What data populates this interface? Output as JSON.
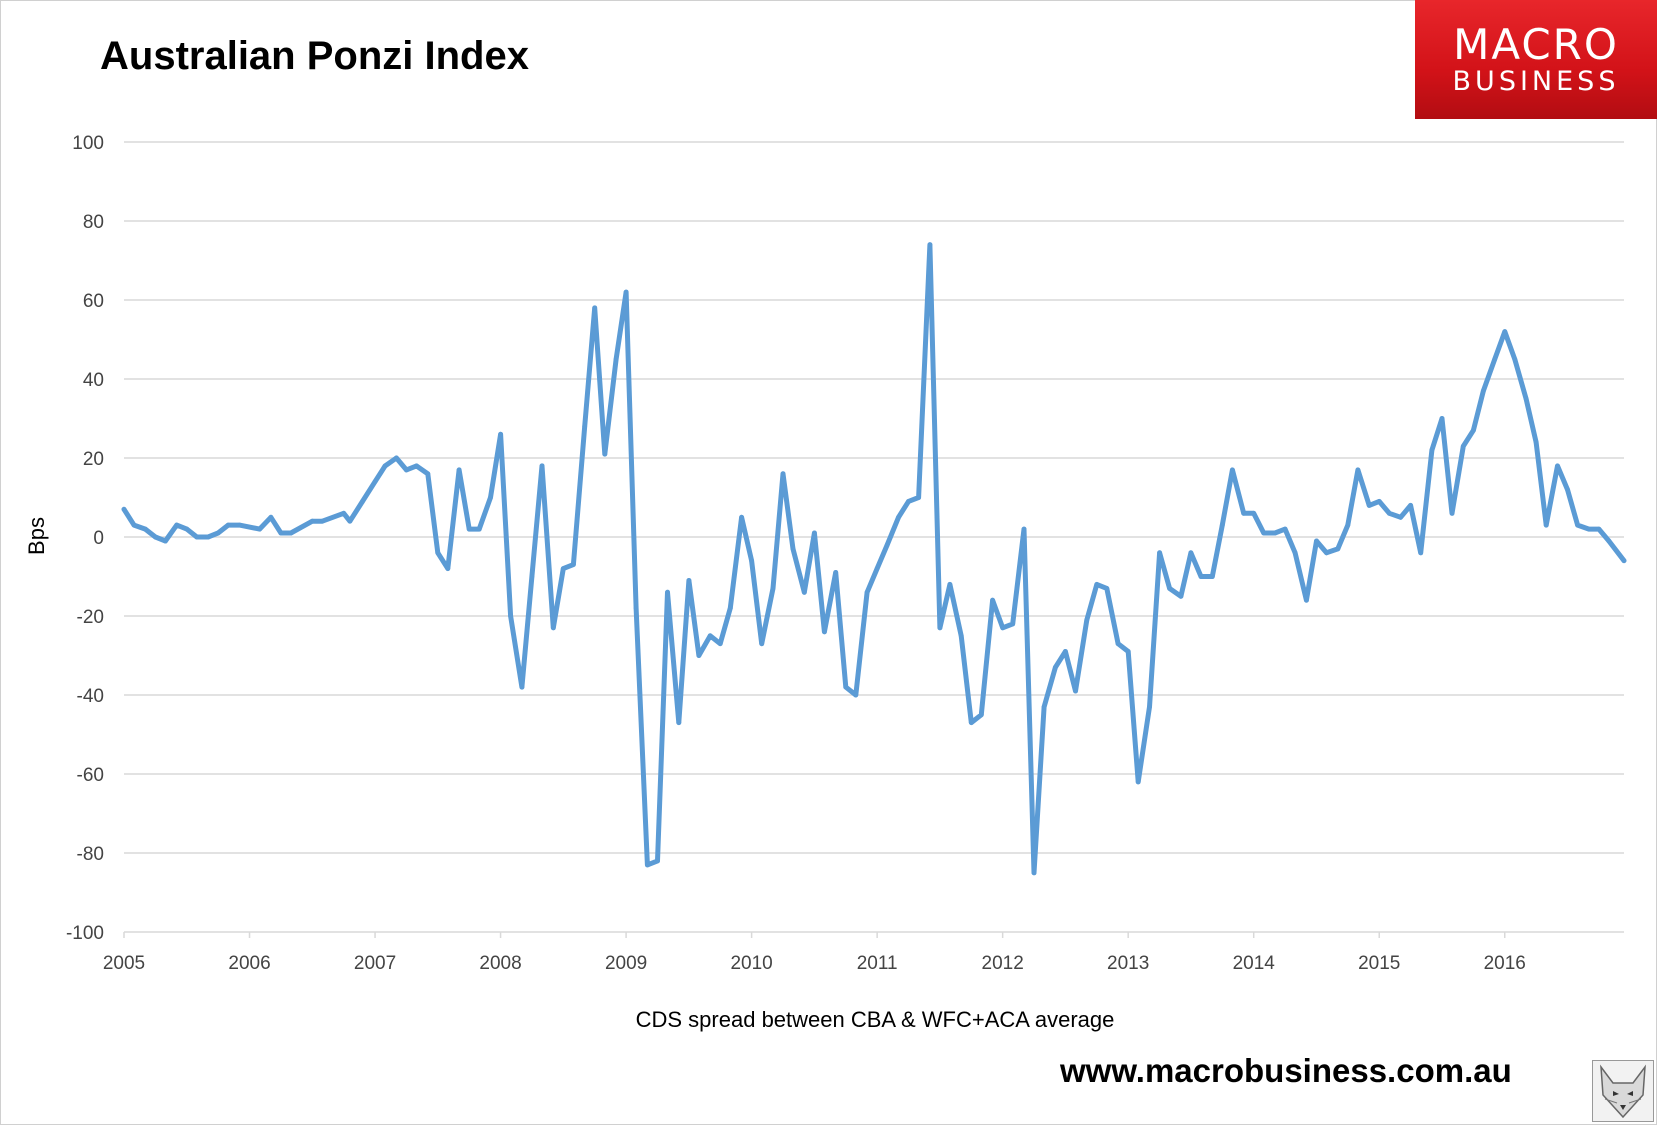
{
  "header": {
    "title": "Australian Ponzi Index",
    "logo_line1": "MACRO",
    "logo_line2": "BUSINESS"
  },
  "footer": {
    "website": "www.macrobusiness.com.au"
  },
  "colors": {
    "series": "#5b9bd5",
    "gridline": "#d9d9d9",
    "logo_red": "#d21218"
  },
  "chart_data": {
    "type": "line",
    "title": "Australian Ponzi Index",
    "ylabel": "Bps",
    "xlabel": "CDS spread between CBA & WFC+ACA average",
    "xlim": [
      2005,
      2016.95
    ],
    "ylim": [
      -100,
      100
    ],
    "y_ticks": [
      "100",
      "80",
      "60",
      "40",
      "20",
      "0",
      "-20",
      "-40",
      "-60",
      "-80",
      "-100"
    ],
    "x_ticks": [
      "2005",
      "2006",
      "2007",
      "2008",
      "2009",
      "2010",
      "2011",
      "2012",
      "2013",
      "2014",
      "2015",
      "2016"
    ],
    "grid": true,
    "legend": "none",
    "series": [
      {
        "x": [
          2005.0,
          2005.08,
          2005.17,
          2005.25,
          2005.33,
          2005.42,
          2005.5,
          2005.58,
          2005.67,
          2005.75,
          2005.83,
          2005.92,
          2006.08,
          2006.17,
          2006.25,
          2006.33,
          2006.5,
          2006.58,
          2006.75,
          2006.8,
          2006.9,
          2007.0,
          2007.08,
          2007.17,
          2007.25,
          2007.33,
          2007.42,
          2007.5,
          2007.58,
          2007.67,
          2007.75,
          2007.83,
          2007.92,
          2008.0,
          2008.08,
          2008.17,
          2008.25,
          2008.33,
          2008.42,
          2008.5,
          2008.58,
          2008.67,
          2008.75,
          2008.83,
          2008.92,
          2009.0,
          2009.08,
          2009.17,
          2009.25,
          2009.33,
          2009.42,
          2009.5,
          2009.58,
          2009.67,
          2009.75,
          2009.83,
          2009.92,
          2010.0,
          2010.08,
          2010.17,
          2010.25,
          2010.33,
          2010.42,
          2010.5,
          2010.58,
          2010.67,
          2010.75,
          2010.83,
          2010.92,
          2011.0,
          2011.08,
          2011.17,
          2011.25,
          2011.33,
          2011.42,
          2011.5,
          2011.58,
          2011.67,
          2011.75,
          2011.83,
          2011.92,
          2012.0,
          2012.08,
          2012.17,
          2012.25,
          2012.33,
          2012.42,
          2012.5,
          2012.58,
          2012.67,
          2012.75,
          2012.83,
          2012.92,
          2013.0,
          2013.08,
          2013.17,
          2013.25,
          2013.33,
          2013.42,
          2013.5,
          2013.58,
          2013.67,
          2013.75,
          2013.83,
          2013.92,
          2014.0,
          2014.08,
          2014.17,
          2014.25,
          2014.33,
          2014.42,
          2014.5,
          2014.58,
          2014.67,
          2014.75,
          2014.83,
          2014.92,
          2015.0,
          2015.08,
          2015.17,
          2015.25,
          2015.33,
          2015.42,
          2015.5,
          2015.58,
          2015.67,
          2015.75,
          2015.83,
          2015.92,
          2016.0,
          2016.08,
          2016.17,
          2016.25,
          2016.33,
          2016.42,
          2016.5,
          2016.58,
          2016.67,
          2016.75,
          2016.83,
          2016.95
        ],
        "values": [
          7,
          3,
          2,
          0,
          -1,
          3,
          2,
          0,
          0,
          1,
          3,
          3,
          2,
          5,
          1,
          1,
          4,
          4,
          6,
          4,
          9,
          14,
          18,
          20,
          17,
          18,
          16,
          -4,
          -8,
          17,
          2,
          2,
          10,
          26,
          -20,
          -38,
          -10,
          18,
          -23,
          -8,
          -7,
          28,
          58,
          21,
          45,
          62,
          -18,
          -83,
          -82,
          -14,
          -47,
          -11,
          -30,
          -25,
          -27,
          -18,
          5,
          -6,
          -27,
          -13,
          16,
          -3,
          -14,
          1,
          -24,
          -9,
          -38,
          -40,
          -14,
          -8,
          -2,
          5,
          9,
          10,
          74,
          -23,
          -12,
          -25,
          -47,
          -45,
          -16,
          -23,
          -22,
          2,
          -85,
          -43,
          -33,
          -29,
          -39,
          -21,
          -12,
          -13,
          -27,
          -29,
          -62,
          -43,
          -4,
          -13,
          -15,
          -4,
          -10,
          -10,
          3,
          17,
          6,
          6,
          1,
          1,
          2,
          -4,
          -16,
          -1,
          -4,
          -3,
          3,
          17,
          8,
          9,
          6,
          5,
          8,
          -4,
          22,
          30,
          6,
          23,
          27,
          37,
          45,
          52,
          45,
          35,
          24,
          3,
          18,
          12,
          3,
          2,
          2,
          -1,
          -6
        ]
      }
    ]
  }
}
